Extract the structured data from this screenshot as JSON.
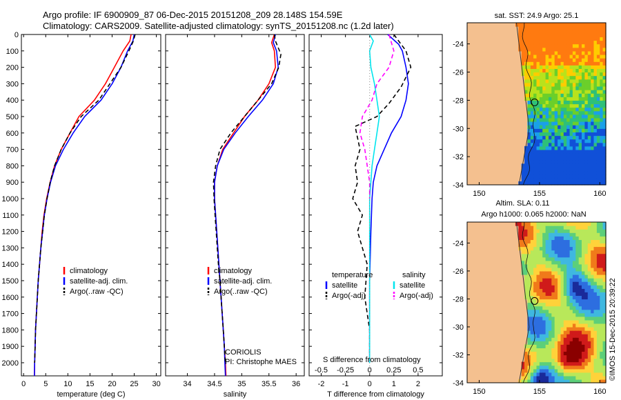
{
  "title_line1": "Argo profile: IF 6900909_87 06-Dec-2015 20151208_209 28.148S 154.59E",
  "title_line2": "Climatology: CARS2009. Satellite-adjusted climatology: synTS_20151208.nc (1.2d later)",
  "colors": {
    "climatology": "#ff0000",
    "satellite": "#0000ff",
    "argo": "#000000",
    "sat_salinity": "#00e5ee",
    "argo_salinity_adj": "#ff00ff",
    "land": "#f4c08f"
  },
  "chart_data": [
    {
      "type": "line",
      "id": "temperature",
      "xlabel": "temperature (deg C)",
      "ylabel": "",
      "xlim": [
        -0.5,
        31
      ],
      "ylim": [
        2080,
        0
      ],
      "xticks": [
        0,
        5,
        10,
        15,
        20,
        25,
        30
      ],
      "yticks": [
        0,
        100,
        200,
        300,
        400,
        500,
        600,
        700,
        800,
        900,
        1000,
        1100,
        1200,
        1300,
        1400,
        1500,
        1600,
        1700,
        1800,
        1900,
        2000
      ],
      "legend": [
        "climatology",
        "satellite-adj. clim.",
        "Argo(..raw -QC)"
      ],
      "series": [
        {
          "name": "climatology",
          "style": "solid",
          "color": "#ff0000",
          "points": [
            [
              24.3,
              0
            ],
            [
              24.0,
              40
            ],
            [
              22.5,
              100
            ],
            [
              20.5,
              200
            ],
            [
              18.5,
              300
            ],
            [
              16.0,
              400
            ],
            [
              12.5,
              500
            ],
            [
              10.5,
              600
            ],
            [
              8.5,
              700
            ],
            [
              7.0,
              800
            ],
            [
              6.0,
              900
            ],
            [
              5.2,
              1000
            ],
            [
              4.6,
              1100
            ],
            [
              4.2,
              1200
            ],
            [
              3.9,
              1300
            ],
            [
              3.6,
              1400
            ],
            [
              3.3,
              1500
            ],
            [
              3.1,
              1600
            ],
            [
              2.9,
              1700
            ],
            [
              2.7,
              1800
            ],
            [
              2.6,
              1900
            ],
            [
              2.5,
              2000
            ],
            [
              2.45,
              2080
            ]
          ]
        },
        {
          "name": "satellite-adj. clim.",
          "style": "solid",
          "color": "#0000ff",
          "points": [
            [
              25.0,
              0
            ],
            [
              24.7,
              40
            ],
            [
              23.5,
              100
            ],
            [
              22.0,
              200
            ],
            [
              20.0,
              300
            ],
            [
              17.5,
              400
            ],
            [
              13.8,
              500
            ],
            [
              11.2,
              600
            ],
            [
              9.0,
              700
            ],
            [
              7.2,
              800
            ],
            [
              6.1,
              900
            ],
            [
              5.3,
              1000
            ],
            [
              4.7,
              1100
            ],
            [
              4.3,
              1200
            ],
            [
              3.9,
              1300
            ],
            [
              3.6,
              1400
            ],
            [
              3.3,
              1500
            ],
            [
              3.1,
              1600
            ],
            [
              2.9,
              1700
            ],
            [
              2.7,
              1800
            ],
            [
              2.6,
              1900
            ],
            [
              2.5,
              2000
            ],
            [
              2.45,
              2080
            ]
          ]
        },
        {
          "name": "Argo(..raw -QC)",
          "style": "dashed",
          "color": "#000000",
          "points": [
            [
              25.2,
              0
            ],
            [
              24.8,
              40
            ],
            [
              23.8,
              100
            ],
            [
              22.0,
              200
            ],
            [
              19.5,
              300
            ],
            [
              17.0,
              400
            ],
            [
              13.0,
              500
            ],
            [
              10.5,
              600
            ],
            [
              8.5,
              700
            ],
            [
              7.0,
              800
            ],
            [
              6.0,
              900
            ],
            [
              5.3,
              1000
            ],
            [
              4.7,
              1100
            ],
            [
              4.3,
              1200
            ],
            [
              3.9,
              1300
            ],
            [
              3.6,
              1400
            ],
            [
              3.3,
              1500
            ],
            [
              3.1,
              1600
            ],
            [
              2.9,
              1700
            ],
            [
              2.7,
              1800
            ],
            [
              2.6,
              1900
            ],
            [
              2.5,
              2000
            ]
          ]
        }
      ]
    },
    {
      "type": "line",
      "id": "salinity",
      "xlabel": "salinity",
      "ylabel": "",
      "xlim": [
        33.6,
        36.15
      ],
      "ylim": [
        2080,
        0
      ],
      "xticks": [
        34,
        34.5,
        35,
        35.5,
        36
      ],
      "xticklabels": [
        "34",
        "34.5",
        "35",
        "35.5",
        "36"
      ],
      "yticks": [
        0,
        100,
        200,
        300,
        400,
        500,
        600,
        700,
        800,
        900,
        1000,
        1100,
        1200,
        1300,
        1400,
        1500,
        1600,
        1700,
        1800,
        1900,
        2000
      ],
      "legend": [
        "climatology",
        "satellite-adj. clim.",
        "Argo(..raw -QC)"
      ],
      "annotation": [
        "CORIOLIS",
        "PI: Christophe MAES"
      ],
      "series": [
        {
          "name": "climatology",
          "style": "solid",
          "color": "#ff0000",
          "points": [
            [
              35.6,
              0
            ],
            [
              35.55,
              50
            ],
            [
              35.6,
              100
            ],
            [
              35.62,
              200
            ],
            [
              35.5,
              300
            ],
            [
              35.3,
              400
            ],
            [
              35.05,
              500
            ],
            [
              34.85,
              600
            ],
            [
              34.65,
              700
            ],
            [
              34.55,
              800
            ],
            [
              34.5,
              900
            ],
            [
              34.5,
              1000
            ],
            [
              34.52,
              1100
            ],
            [
              34.54,
              1200
            ],
            [
              34.56,
              1300
            ],
            [
              34.58,
              1400
            ],
            [
              34.6,
              1500
            ],
            [
              34.62,
              1600
            ],
            [
              34.64,
              1700
            ],
            [
              34.66,
              1800
            ],
            [
              34.68,
              1900
            ],
            [
              34.7,
              2000
            ],
            [
              34.71,
              2080
            ]
          ]
        },
        {
          "name": "satellite-adj. clim.",
          "style": "solid",
          "color": "#0000ff",
          "points": [
            [
              35.62,
              0
            ],
            [
              35.58,
              50
            ],
            [
              35.64,
              100
            ],
            [
              35.67,
              200
            ],
            [
              35.58,
              300
            ],
            [
              35.38,
              400
            ],
            [
              35.12,
              500
            ],
            [
              34.88,
              600
            ],
            [
              34.67,
              700
            ],
            [
              34.55,
              800
            ],
            [
              34.5,
              900
            ],
            [
              34.5,
              1000
            ],
            [
              34.52,
              1100
            ],
            [
              34.54,
              1200
            ],
            [
              34.56,
              1300
            ],
            [
              34.58,
              1400
            ],
            [
              34.6,
              1500
            ],
            [
              34.62,
              1600
            ],
            [
              34.64,
              1700
            ],
            [
              34.66,
              1800
            ],
            [
              34.68,
              1900
            ],
            [
              34.69,
              2000
            ],
            [
              34.7,
              2080
            ]
          ]
        },
        {
          "name": "Argo(..raw -QC)",
          "style": "dashed",
          "color": "#000000",
          "points": [
            [
              35.6,
              0
            ],
            [
              35.62,
              40
            ],
            [
              35.72,
              120
            ],
            [
              35.68,
              200
            ],
            [
              35.55,
              300
            ],
            [
              35.3,
              400
            ],
            [
              35.05,
              500
            ],
            [
              34.8,
              600
            ],
            [
              34.6,
              700
            ],
            [
              34.52,
              800
            ],
            [
              34.48,
              900
            ],
            [
              34.49,
              1000
            ],
            [
              34.51,
              1100
            ],
            [
              34.53,
              1200
            ],
            [
              34.55,
              1300
            ],
            [
              34.57,
              1400
            ],
            [
              34.6,
              1500
            ],
            [
              34.62,
              1600
            ],
            [
              34.64,
              1700
            ],
            [
              34.66,
              1800
            ],
            [
              34.68,
              1900
            ],
            [
              34.7,
              2000
            ]
          ]
        }
      ]
    },
    {
      "type": "line",
      "id": "difference",
      "xlabel": "T difference from climatology",
      "xlabel_top": "S difference from climatology",
      "ylabel": "",
      "xlim": [
        -2.5,
        3.0
      ],
      "ylim": [
        2080,
        0
      ],
      "xticks": [
        -2,
        -1,
        0,
        1,
        2
      ],
      "xticklabels": [
        "-2",
        "-1",
        "0",
        "1",
        "2"
      ],
      "s_ticks": [
        -2,
        -1,
        0,
        1,
        2
      ],
      "s_ticklabels": [
        "-0.5",
        "-0.25",
        "0",
        "0.25",
        "0.5"
      ],
      "yticks": [
        0,
        100,
        200,
        300,
        400,
        500,
        600,
        700,
        800,
        900,
        1000,
        1100,
        1200,
        1300,
        1400,
        1500,
        1600,
        1700,
        1800,
        1900,
        2000
      ],
      "legend_headers": [
        "temperature",
        "salinity"
      ],
      "legend": [
        "satellite",
        "Argo(-adj)",
        "satellite",
        "Argo(-adj)"
      ],
      "series": [
        {
          "name": "temperature satellite",
          "style": "solid",
          "color": "#0000ff",
          "points": [
            [
              0.75,
              0
            ],
            [
              1.2,
              60
            ],
            [
              1.35,
              100
            ],
            [
              1.5,
              200
            ],
            [
              1.6,
              300
            ],
            [
              1.5,
              400
            ],
            [
              1.3,
              500
            ],
            [
              0.9,
              600
            ],
            [
              0.6,
              700
            ],
            [
              0.3,
              800
            ],
            [
              0.15,
              900
            ],
            [
              0.1,
              1000
            ],
            [
              0.05,
              1200
            ],
            [
              0.0,
              1500
            ],
            [
              0.0,
              2000
            ]
          ]
        },
        {
          "name": "temperature Argo(-adj)",
          "style": "dashed",
          "color": "#000000",
          "points": [
            [
              1.0,
              0
            ],
            [
              1.5,
              100
            ],
            [
              1.7,
              200
            ],
            [
              1.3,
              320
            ],
            [
              0.8,
              420
            ],
            [
              0.3,
              500
            ],
            [
              -0.6,
              560
            ],
            [
              -0.4,
              700
            ],
            [
              -0.6,
              800
            ],
            [
              -0.5,
              900
            ],
            [
              -0.7,
              1000
            ],
            [
              -0.3,
              1100
            ],
            [
              -0.5,
              1200
            ],
            [
              -0.1,
              1400
            ],
            [
              -0.2,
              1600
            ],
            [
              0.0,
              1800
            ],
            [
              0.0,
              2000
            ]
          ]
        },
        {
          "name": "salinity satellite",
          "style": "solid",
          "color": "#00e5ee",
          "points": [
            [
              0.0,
              0
            ],
            [
              0.15,
              40
            ],
            [
              0.0,
              100
            ],
            [
              0.05,
              200
            ],
            [
              0.2,
              300
            ],
            [
              0.3,
              400
            ],
            [
              0.4,
              500
            ],
            [
              0.3,
              600
            ],
            [
              0.2,
              700
            ],
            [
              0.1,
              800
            ],
            [
              0.05,
              900
            ],
            [
              0.0,
              1000
            ],
            [
              0.0,
              1500
            ],
            [
              0.0,
              2000
            ]
          ]
        },
        {
          "name": "salinity Argo(-adj)",
          "style": "dashed",
          "color": "#ff00ff",
          "points": [
            [
              0.8,
              0
            ],
            [
              1.0,
              100
            ],
            [
              0.8,
              200
            ],
            [
              0.3,
              300
            ],
            [
              0.1,
              400
            ],
            [
              -0.3,
              500
            ],
            [
              -0.4,
              600
            ],
            [
              -0.2,
              700
            ],
            [
              -0.1,
              800
            ],
            [
              0.0,
              900
            ],
            [
              0.0,
              1000
            ]
          ]
        }
      ]
    },
    {
      "type": "heatmap",
      "id": "sst_map",
      "title": "sat. SST: 24.9 Argo: 25.1",
      "xlim": [
        149,
        160.5
      ],
      "ylim": [
        -34,
        -22.5
      ],
      "xticks": [
        150,
        155,
        160
      ],
      "xticklabels": [
        "150",
        "155",
        "160"
      ],
      "yticks": [
        -34,
        -32,
        -30,
        -28,
        -26,
        -24
      ],
      "yticklabels": [
        "-34",
        "-32",
        "-30",
        "-28",
        "-26",
        "-24"
      ],
      "argo_position": [
        154.59,
        -28.148
      ]
    },
    {
      "type": "heatmap",
      "id": "sla_map",
      "title": "Altim. SLA: 0.11",
      "subtitle": "Argo h1000: 0.065 h2000: NaN",
      "xlim": [
        149,
        160.5
      ],
      "ylim": [
        -34,
        -22.5
      ],
      "xticks": [
        150,
        155,
        160
      ],
      "xticklabels": [
        "150",
        "155",
        "160"
      ],
      "yticks": [
        -34,
        -32,
        -30,
        -28,
        -26,
        -24
      ],
      "yticklabels": [
        "-34",
        "-32",
        "-30",
        "-28",
        "-26",
        "-24"
      ],
      "argo_position": [
        154.59,
        -28.148
      ]
    }
  ],
  "watermark": "©IMOS 15-Dec-2015 20:39:22"
}
